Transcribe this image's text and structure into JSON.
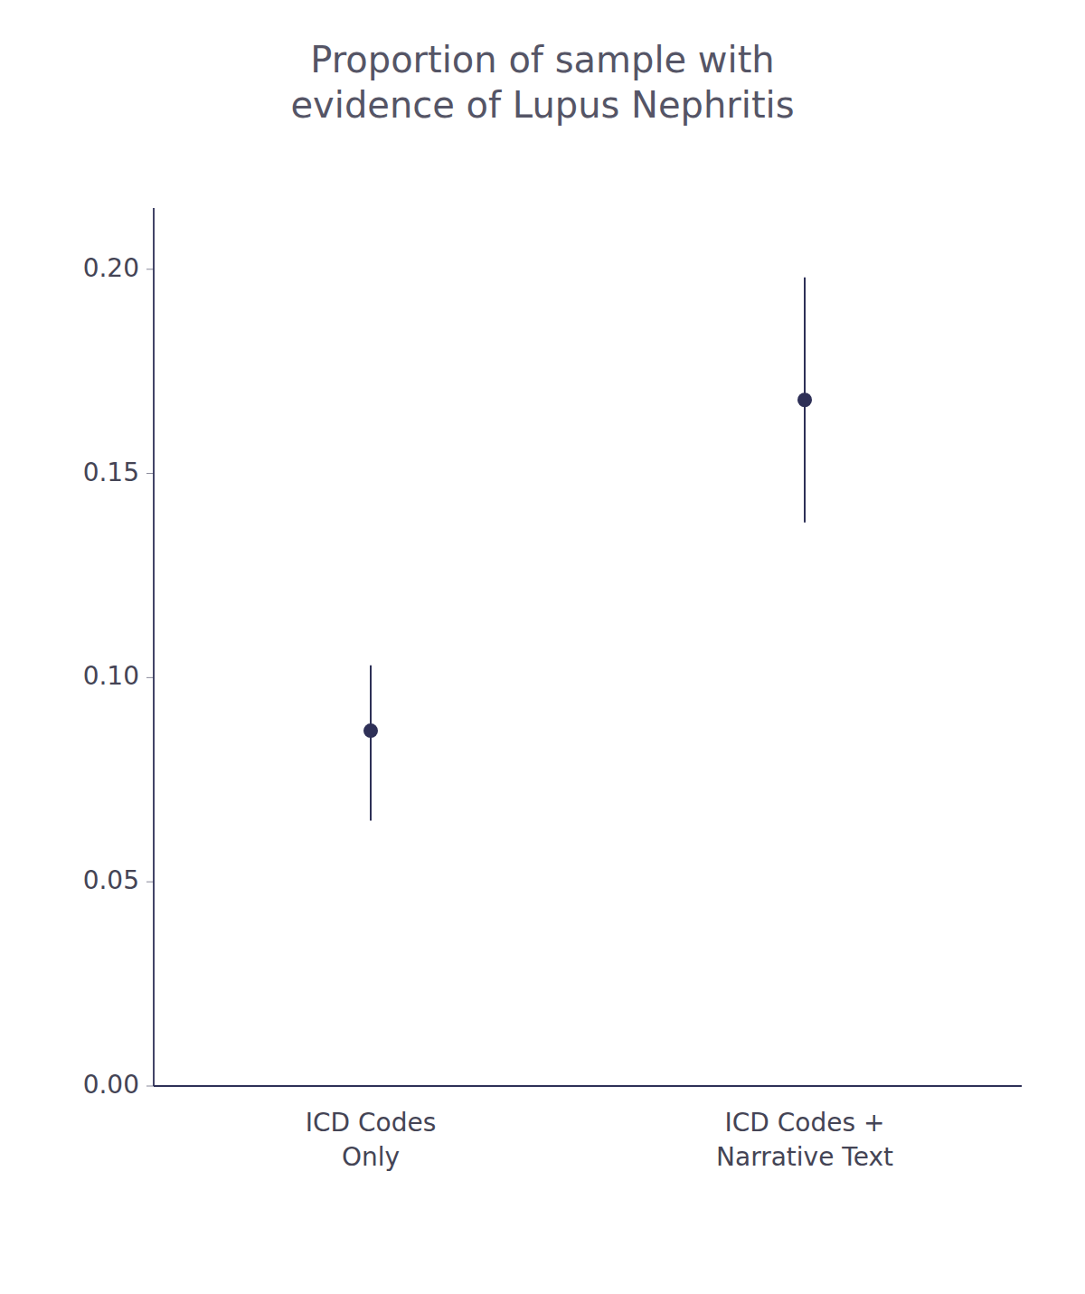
{
  "chart_data": {
    "type": "errorbar",
    "title": "Proportion of sample with\nevidence of Lupus Nephritis",
    "categories": [
      "ICD Codes\nOnly",
      "ICD Codes +\nNarrative Text"
    ],
    "values": [
      0.087,
      0.168
    ],
    "error_lower": [
      0.022,
      0.03
    ],
    "error_upper": [
      0.016,
      0.03
    ],
    "color": "#2e3057",
    "marker": "circle",
    "ylim": [
      0.0,
      0.215
    ],
    "yticks": [
      {
        "value": 0.0,
        "label": "0.00"
      },
      0.05,
      {
        "value": 0.1,
        "label": "0.10"
      },
      0.15,
      {
        "value": 0.2,
        "label": "0.20"
      }
    ],
    "grid": false
  }
}
